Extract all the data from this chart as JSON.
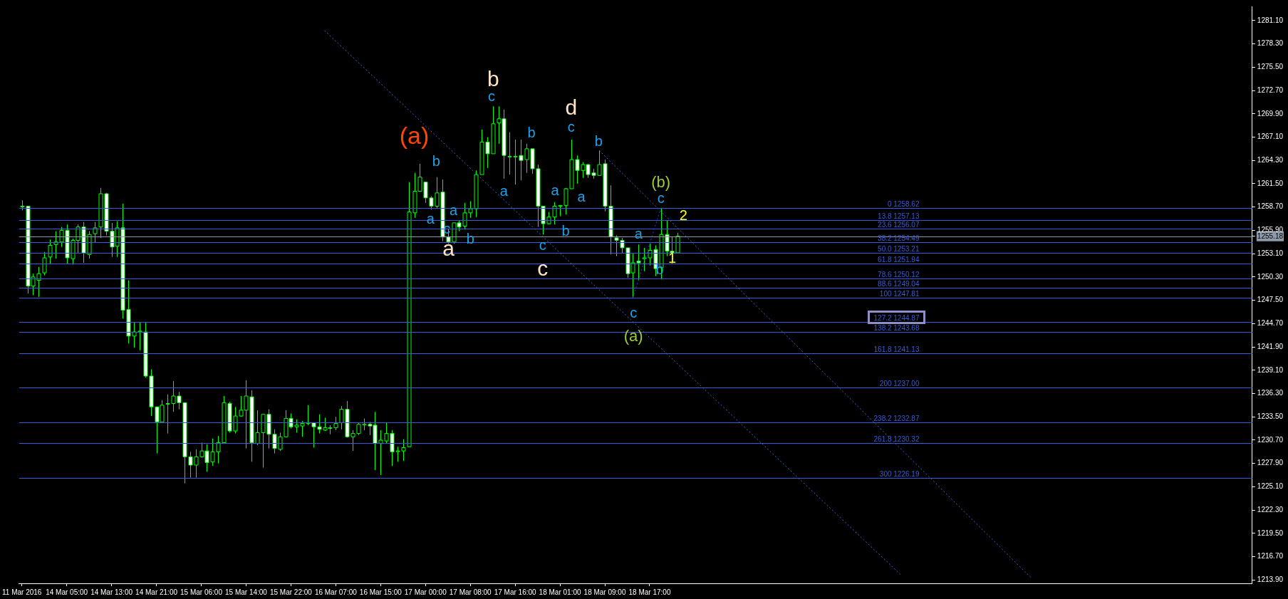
{
  "chart_data": {
    "type": "candlestick",
    "color": "#00ff00",
    "categories": [
      "11 Mar 2016",
      null,
      null,
      null,
      null,
      null,
      null,
      null,
      "14 Mar 05:00",
      null,
      null,
      null,
      null,
      null,
      null,
      null,
      "14 Mar 13:00",
      null,
      null,
      null,
      null,
      null,
      null,
      null,
      "14 Mar 21:00",
      null,
      null,
      null,
      null,
      null,
      null,
      null,
      "15 Mar 06:00",
      null,
      null,
      null,
      null,
      null,
      null,
      null,
      "15 Mar 14:00",
      null,
      null,
      null,
      null,
      null,
      null,
      null,
      "15 Mar 22:00",
      null,
      null,
      null,
      null,
      null,
      null,
      null,
      "16 Mar 07:00",
      null,
      null,
      null,
      null,
      null,
      null,
      null,
      "16 Mar 15:00",
      null,
      null,
      null,
      null,
      null,
      null,
      null,
      "17 Mar 00:00",
      null,
      null,
      null,
      null,
      null,
      null,
      null,
      "17 Mar 08:00",
      null,
      null,
      null,
      null,
      null,
      null,
      null,
      "17 Mar 16:00",
      null,
      null,
      null,
      null,
      null,
      null,
      null,
      "18 Mar 01:00",
      null,
      null,
      null,
      null,
      null,
      null,
      null,
      "18 Mar 09:00",
      null,
      null,
      null,
      null,
      null,
      null,
      null,
      "18 Mar 17:00",
      null,
      null,
      null,
      null,
      null,
      null,
      null,
      null,
      null,
      null,
      null,
      null,
      null,
      null,
      null,
      null,
      null,
      null,
      null,
      null,
      null,
      null,
      null,
      null,
      null,
      null,
      null,
      null,
      null,
      null,
      null,
      null,
      null,
      null,
      null,
      null,
      null,
      null,
      null,
      null,
      null,
      null,
      null,
      null,
      null,
      null,
      null,
      null,
      null,
      null,
      null,
      null,
      null,
      null,
      null,
      null,
      null,
      null,
      null,
      null,
      null,
      null,
      null,
      null,
      null,
      null,
      null,
      null,
      null,
      null,
      null,
      null,
      null,
      null,
      null,
      null,
      null,
      null,
      null,
      null,
      null,
      null,
      null,
      null,
      null,
      null,
      null,
      null,
      null,
      null,
      null,
      null,
      null,
      null,
      null,
      null,
      null,
      null,
      null,
      null,
      null,
      null,
      null,
      null,
      null,
      null,
      null
    ],
    "ohlc": [
      [
        1258.8,
        1259.5,
        1258.3,
        1258.8
      ],
      [
        1258.8,
        1258.8,
        1248.3,
        1249.2
      ],
      [
        1249.2,
        1250.7,
        1248.1,
        1250.3
      ],
      [
        1249.9,
        1251.5,
        1247.9,
        1250.7
      ],
      [
        1250.8,
        1253.3,
        1250.5,
        1252.6
      ],
      [
        1252.7,
        1254.8,
        1251.9,
        1254.1
      ],
      [
        1254.2,
        1255.8,
        1252.5,
        1254.5
      ],
      [
        1254.5,
        1256.3,
        1253.9,
        1255.9
      ],
      [
        1255.9,
        1256.6,
        1251.9,
        1252.6
      ],
      [
        1252.5,
        1254.9,
        1251.8,
        1254.7
      ],
      [
        1254.7,
        1256.6,
        1253.2,
        1256.3
      ],
      [
        1256.3,
        1256.9,
        1252.0,
        1253.2
      ],
      [
        1253.0,
        1255.8,
        1252.5,
        1255.4
      ],
      [
        1255.5,
        1256.9,
        1254.4,
        1256.2
      ],
      [
        1256.3,
        1261.0,
        1255.0,
        1260.3
      ],
      [
        1260.3,
        1260.4,
        1255.3,
        1255.8
      ],
      [
        1255.8,
        1256.8,
        1252.7,
        1253.9
      ],
      [
        1254.0,
        1257.0,
        1252.7,
        1256.2
      ],
      [
        1256.2,
        1259.1,
        1245.3,
        1246.3
      ],
      [
        1246.4,
        1249.9,
        1242.3,
        1243.2
      ],
      [
        1243.2,
        1244.9,
        1241.8,
        1243.7
      ],
      [
        1243.8,
        1244.9,
        1241.5,
        1243.8
      ],
      [
        1243.7,
        1244.8,
        1238.2,
        1238.4
      ],
      [
        1238.4,
        1239.2,
        1233.6,
        1234.7
      ],
      [
        1234.7,
        1234.7,
        1229.1,
        1232.9
      ],
      [
        1232.9,
        1235.5,
        1232.9,
        1234.9
      ],
      [
        1235.1,
        1236.2,
        1231.5,
        1235.1
      ],
      [
        1235.1,
        1237.8,
        1234.1,
        1236.0
      ],
      [
        1236.0,
        1236.5,
        1234.4,
        1235.2
      ],
      [
        1235.2,
        1235.2,
        1225.5,
        1228.7
      ],
      [
        1228.7,
        1229.3,
        1226.2,
        1227.7
      ],
      [
        1227.7,
        1229.6,
        1226.2,
        1228.7
      ],
      [
        1228.7,
        1230.4,
        1228.6,
        1229.4
      ],
      [
        1229.4,
        1230.2,
        1226.9,
        1228.0
      ],
      [
        1228.1,
        1230.9,
        1227.6,
        1229.3
      ],
      [
        1229.3,
        1231.2,
        1227.9,
        1230.4
      ],
      [
        1230.4,
        1236.0,
        1230.3,
        1235.2
      ],
      [
        1235.1,
        1235.3,
        1231.6,
        1231.8
      ],
      [
        1231.8,
        1234.7,
        1231.5,
        1233.6
      ],
      [
        1233.6,
        1236.0,
        1233.5,
        1234.3
      ],
      [
        1234.3,
        1237.9,
        1229.7,
        1236.0
      ],
      [
        1235.9,
        1236.7,
        1228.1,
        1230.4
      ],
      [
        1230.3,
        1234.3,
        1230.1,
        1231.6
      ],
      [
        1231.6,
        1233.8,
        1227.4,
        1233.8
      ],
      [
        1233.8,
        1234.4,
        1229.7,
        1231.4
      ],
      [
        1231.4,
        1232.0,
        1229.1,
        1229.7
      ],
      [
        1229.6,
        1231.6,
        1229.4,
        1231.1
      ],
      [
        1231.1,
        1234.3,
        1231.0,
        1233.3
      ],
      [
        1233.3,
        1233.9,
        1232.1,
        1232.3
      ],
      [
        1232.3,
        1233.2,
        1231.6,
        1232.5
      ],
      [
        1232.4,
        1233.0,
        1231.1,
        1232.7
      ],
      [
        1232.7,
        1234.9,
        1232.5,
        1232.8
      ],
      [
        1232.8,
        1232.8,
        1229.8,
        1232.3
      ],
      [
        1232.3,
        1233.8,
        1231.5,
        1232.0
      ],
      [
        1231.9,
        1233.4,
        1231.8,
        1232.2
      ],
      [
        1232.2,
        1232.5,
        1231.4,
        1232.2
      ],
      [
        1232.2,
        1233.5,
        1231.9,
        1232.7
      ],
      [
        1232.8,
        1234.8,
        1232.0,
        1234.4
      ],
      [
        1234.4,
        1235.4,
        1231.0,
        1231.1
      ],
      [
        1231.1,
        1231.9,
        1229.4,
        1231.5
      ],
      [
        1231.5,
        1232.8,
        1231.3,
        1232.6
      ],
      [
        1232.6,
        1233.3,
        1231.9,
        1232.6
      ],
      [
        1232.6,
        1232.9,
        1231.3,
        1232.4
      ],
      [
        1232.5,
        1234.1,
        1227.1,
        1230.3
      ],
      [
        1230.3,
        1231.9,
        1226.5,
        1230.7
      ],
      [
        1230.6,
        1232.8,
        1230.3,
        1231.5
      ],
      [
        1231.5,
        1231.9,
        1227.6,
        1229.3
      ],
      [
        1229.4,
        1229.9,
        1228.1,
        1229.4
      ],
      [
        1229.4,
        1230.8,
        1228.2,
        1229.8
      ],
      [
        1229.9,
        1261.7,
        1229.9,
        1258.1
      ],
      [
        1258.0,
        1262.8,
        1257.4,
        1260.6
      ],
      [
        1260.6,
        1263.9,
        1260.6,
        1262.3
      ],
      [
        1261.7,
        1261.7,
        1259.2,
        1259.8
      ],
      [
        1259.8,
        1260.0,
        1258.4,
        1258.8
      ],
      [
        1258.8,
        1262.3,
        1258.6,
        1260.4
      ],
      [
        1260.5,
        1262.0,
        1254.6,
        1255.1
      ],
      [
        1255.1,
        1256.1,
        1254.3,
        1254.5
      ],
      [
        1254.5,
        1256.8,
        1254.3,
        1256.8
      ],
      [
        1256.8,
        1257.1,
        1255.8,
        1256.3
      ],
      [
        1256.4,
        1259.2,
        1256.0,
        1258.0
      ],
      [
        1258.0,
        1259.4,
        1257.4,
        1258.5
      ],
      [
        1258.5,
        1263.1,
        1257.5,
        1262.6
      ],
      [
        1262.6,
        1268.0,
        1262.6,
        1266.5
      ],
      [
        1266.5,
        1267.1,
        1263.4,
        1265.1
      ],
      [
        1265.1,
        1270.8,
        1265.1,
        1268.7
      ],
      [
        1268.8,
        1270.8,
        1266.3,
        1269.3
      ],
      [
        1269.3,
        1270.4,
        1262.1,
        1264.9
      ],
      [
        1264.8,
        1267.7,
        1262.6,
        1264.8
      ],
      [
        1264.8,
        1266.8,
        1261.4,
        1264.8
      ],
      [
        1264.9,
        1266.8,
        1261.9,
        1264.3
      ],
      [
        1264.4,
        1266.3,
        1262.8,
        1265.7
      ],
      [
        1265.7,
        1265.7,
        1262.7,
        1263.3
      ],
      [
        1263.3,
        1263.8,
        1256.3,
        1258.8
      ],
      [
        1258.8,
        1258.8,
        1255.4,
        1256.7
      ],
      [
        1256.7,
        1258.1,
        1256.6,
        1257.5
      ],
      [
        1257.5,
        1259.3,
        1256.6,
        1258.8
      ],
      [
        1258.8,
        1258.9,
        1257.6,
        1258.9
      ],
      [
        1258.9,
        1261.0,
        1257.8,
        1260.9
      ],
      [
        1260.9,
        1266.8,
        1260.9,
        1264.4
      ],
      [
        1264.4,
        1264.9,
        1261.5,
        1263.1
      ],
      [
        1263.1,
        1264.1,
        1262.2,
        1263.8
      ],
      [
        1263.8,
        1263.9,
        1262.2,
        1262.6
      ],
      [
        1262.8,
        1263.3,
        1262.1,
        1262.5
      ],
      [
        1262.5,
        1265.5,
        1262.5,
        1263.8
      ],
      [
        1263.9,
        1264.4,
        1258.2,
        1258.8
      ],
      [
        1258.8,
        1261.3,
        1253.0,
        1255.1
      ],
      [
        1255.0,
        1255.3,
        1252.8,
        1254.7
      ],
      [
        1254.7,
        1255.0,
        1253.2,
        1253.8
      ],
      [
        1253.8,
        1253.8,
        1250.2,
        1250.7
      ],
      [
        1250.8,
        1253.1,
        1247.8,
        1252.0
      ],
      [
        1252.2,
        1254.2,
        1249.9,
        1252.0
      ],
      [
        1252.5,
        1253.8,
        1251.0,
        1252.6
      ],
      [
        1252.6,
        1254.3,
        1251.7,
        1253.5
      ],
      [
        1253.6,
        1254.1,
        1250.4,
        1251.3
      ],
      [
        1251.4,
        1258.6,
        1250.0,
        1255.4
      ],
      [
        1255.4,
        1257.1,
        1252.8,
        1253.4
      ],
      [
        1253.4,
        1255.1,
        1251.9,
        1253.2
      ],
      [
        1253.2,
        1255.6,
        1253.2,
        1255.2
      ],
      null,
      null,
      null,
      null,
      null,
      null,
      null,
      null,
      null,
      null,
      null,
      null,
      null,
      null,
      null,
      null,
      null,
      null,
      null,
      null,
      null,
      null,
      null,
      null,
      null,
      null,
      null,
      null,
      null,
      null,
      null,
      null,
      null,
      null,
      null,
      null,
      null,
      null,
      null,
      null,
      null,
      null,
      null,
      null,
      null,
      null,
      null,
      null,
      null,
      null,
      null,
      null,
      null,
      null,
      null,
      null,
      null,
      null,
      null,
      null,
      null,
      null,
      null,
      null,
      null,
      null,
      null,
      null,
      null,
      null,
      null,
      null,
      null,
      null,
      null,
      null,
      null,
      null,
      null,
      null,
      null,
      null,
      null,
      null,
      null,
      null,
      null,
      null,
      null,
      null,
      null,
      null,
      null,
      null,
      null,
      null,
      null,
      null,
      null,
      null,
      null,
      null
    ],
    "series": [
      {
        "type": "line",
        "color": "#4169e1",
        "line_style": "dotted",
        "values": [
          null,
          null,
          null,
          null,
          null,
          null,
          null,
          null,
          null,
          null,
          null,
          null,
          null,
          null,
          null,
          null,
          null,
          null,
          null,
          null,
          null,
          null,
          null,
          null,
          null,
          null,
          null,
          null,
          null,
          null,
          null,
          null,
          null,
          null,
          null,
          null,
          null,
          null,
          null,
          null,
          null,
          null,
          null,
          null,
          null,
          null,
          null,
          null,
          null,
          null,
          null,
          null,
          null,
          null,
          1279.9,
          null,
          null,
          null,
          null,
          null,
          null,
          null,
          null,
          null,
          null,
          null,
          null,
          null,
          null,
          null,
          null,
          null,
          null,
          null,
          null,
          null,
          null,
          null,
          null,
          null,
          null,
          null,
          null,
          null,
          null,
          null,
          null,
          null,
          null,
          null,
          null,
          null,
          null,
          null,
          null,
          null,
          null,
          null,
          null,
          null,
          null,
          null,
          null,
          null,
          null,
          null,
          null,
          null,
          null,
          null,
          null,
          null,
          null,
          null,
          null,
          null,
          null,
          null,
          null,
          null,
          null,
          null,
          null,
          null,
          null,
          null,
          null,
          null,
          null,
          null,
          null,
          null,
          null,
          null,
          null,
          null,
          null,
          null,
          null,
          null,
          null,
          null,
          null,
          null,
          null,
          null,
          null,
          null,
          null,
          null,
          null,
          null,
          null,
          null,
          null,
          null,
          null,
          1214.4,
          null,
          null,
          null,
          null,
          null,
          null,
          null,
          null,
          null,
          null,
          null,
          null,
          null,
          null,
          null,
          null,
          null,
          null,
          null,
          null,
          null,
          null,
          null,
          null,
          null,
          null,
          null,
          null,
          null,
          null,
          null,
          null,
          null,
          null,
          null,
          null,
          null,
          null,
          null,
          null,
          null,
          null,
          null,
          null,
          null,
          null,
          null,
          null,
          null,
          null,
          null,
          null,
          null,
          null,
          null,
          null,
          null,
          null,
          null,
          null,
          null,
          null
        ]
      },
      {
        "type": "line",
        "color": "#4169e1",
        "line_style": "dotted",
        "values": [
          null,
          null,
          null,
          null,
          null,
          null,
          null,
          null,
          null,
          null,
          null,
          null,
          null,
          null,
          null,
          null,
          null,
          null,
          null,
          null,
          null,
          null,
          null,
          null,
          null,
          null,
          null,
          null,
          null,
          null,
          null,
          null,
          null,
          null,
          null,
          null,
          null,
          null,
          null,
          null,
          null,
          null,
          null,
          null,
          null,
          null,
          null,
          null,
          null,
          null,
          null,
          null,
          null,
          null,
          null,
          null,
          null,
          null,
          null,
          null,
          null,
          null,
          null,
          null,
          null,
          null,
          null,
          null,
          null,
          null,
          null,
          null,
          null,
          null,
          null,
          null,
          null,
          null,
          null,
          null,
          null,
          null,
          null,
          null,
          null,
          null,
          null,
          null,
          null,
          null,
          null,
          null,
          null,
          null,
          null,
          null,
          null,
          null,
          null,
          null,
          null,
          null,
          null,
          1265.5,
          null,
          null,
          null,
          null,
          null,
          null,
          null,
          null,
          null,
          null,
          null,
          null,
          null,
          null,
          null,
          null,
          null,
          null,
          null,
          null,
          null,
          null,
          null,
          null,
          null,
          null,
          null,
          null,
          null,
          null,
          null,
          null,
          null,
          null,
          null,
          null,
          null,
          null,
          null,
          null,
          null,
          null,
          null,
          null,
          null,
          null,
          null,
          null,
          null,
          null,
          null,
          null,
          null,
          null,
          null,
          null,
          null,
          null,
          null,
          null,
          null,
          null,
          null,
          null,
          null,
          null,
          null,
          null,
          null,
          null,
          null,
          null,
          null,
          null,
          null,
          null,
          1214.2,
          null,
          null,
          null,
          null,
          null,
          null,
          null,
          null,
          null,
          null,
          null,
          null,
          null,
          null,
          null,
          null,
          null,
          null,
          null,
          null,
          null,
          null,
          null,
          null,
          null,
          null,
          null,
          null,
          null,
          null,
          null,
          null,
          null,
          null,
          null,
          null,
          null,
          null,
          null
        ]
      },
      {
        "type": "line",
        "color": "#2040ff",
        "line_style": "dotted",
        "values": [
          null,
          null,
          null,
          null,
          null,
          null,
          null,
          null,
          null,
          null,
          null,
          null,
          null,
          null,
          null,
          null,
          null,
          null,
          null,
          null,
          null,
          null,
          null,
          null,
          null,
          null,
          null,
          null,
          null,
          null,
          null,
          null,
          null,
          null,
          null,
          null,
          null,
          null,
          null,
          null,
          null,
          null,
          null,
          null,
          null,
          null,
          null,
          null,
          null,
          null,
          null,
          null,
          null,
          null,
          null,
          null,
          null,
          null,
          null,
          null,
          null,
          null,
          null,
          null,
          null,
          null,
          null,
          null,
          null,
          null,
          null,
          null,
          null,
          null,
          null,
          null,
          null,
          null,
          null,
          null,
          null,
          null,
          null,
          null,
          null,
          null,
          null,
          null,
          null,
          null,
          null,
          null,
          null,
          null,
          null,
          null,
          null,
          null,
          null,
          null,
          null,
          null,
          null,
          null,
          null,
          null,
          null,
          null,
          null,
          1247.8,
          null,
          null,
          null,
          null,
          1258.6,
          null,
          null,
          null,
          null,
          null,
          null,
          null,
          null,
          null,
          null,
          null,
          null,
          null,
          null,
          null,
          null,
          null,
          null,
          null,
          null,
          null,
          null,
          null,
          null,
          null,
          null,
          null,
          null,
          null,
          null,
          null,
          null,
          null,
          null,
          null,
          null,
          null,
          null,
          null,
          null,
          null,
          null,
          null,
          null,
          null,
          null,
          null,
          null,
          null,
          null,
          null,
          null,
          null,
          null,
          null,
          null,
          null,
          null,
          null,
          null,
          null,
          null,
          null,
          null,
          null,
          null,
          null,
          null,
          null,
          null,
          null,
          null,
          null,
          null,
          null,
          null,
          null,
          null,
          null,
          null,
          null,
          null,
          null,
          null,
          null,
          null,
          null,
          null,
          null,
          null,
          null,
          null,
          null,
          null,
          null,
          null,
          null,
          null,
          null,
          null,
          null,
          null,
          null,
          null,
          null
        ]
      }
    ],
    "ylim": [
      1213.5,
      1282.8
    ],
    "yticks": [
      {
        "value": 1213.9,
        "label": "1213.90"
      },
      {
        "value": 1216.7,
        "label": "1216.70"
      },
      {
        "value": 1219.5,
        "label": "1219.50"
      },
      {
        "value": 1222.3,
        "label": "1222.30"
      },
      {
        "value": 1225.1,
        "label": "1225.10"
      },
      {
        "value": 1227.9,
        "label": "1227.90"
      },
      {
        "value": 1230.7,
        "label": "1230.70"
      },
      {
        "value": 1233.5,
        "label": "1233.50"
      },
      {
        "value": 1236.3,
        "label": "1236.30"
      },
      {
        "value": 1239.1,
        "label": "1239.10"
      },
      {
        "value": 1241.9,
        "label": "1241.90"
      },
      {
        "value": 1244.7,
        "label": "1244.70"
      },
      {
        "value": 1247.5,
        "label": "1247.50"
      },
      {
        "value": 1250.3,
        "label": "1250.30"
      },
      {
        "value": 1253.1,
        "label": "1253.10"
      },
      {
        "value": 1255.18,
        "label": "1255.18"
      },
      {
        "value": 1255.9,
        "label": "1255.90"
      },
      {
        "value": 1258.7,
        "label": "1258.70"
      },
      {
        "value": 1261.5,
        "label": "1261.50"
      },
      {
        "value": 1264.3,
        "label": "1264.30"
      },
      {
        "value": 1267.1,
        "label": "1267.10"
      },
      {
        "value": 1269.9,
        "label": "1269.90"
      },
      {
        "value": 1272.7,
        "label": "1272.70"
      },
      {
        "value": 1275.5,
        "label": "1275.50"
      },
      {
        "value": 1278.3,
        "label": "1278.30"
      },
      {
        "value": 1281.1,
        "label": "1281.10"
      }
    ],
    "ref_lines": [
      {
        "axis": "y",
        "value": 1255.18,
        "color": "#8c9aaa"
      },
      {
        "axis": "y",
        "value": 1258.62,
        "label": "0 1258.62",
        "color": "#3a5bd9"
      },
      {
        "axis": "y",
        "value": 1257.13,
        "label": "13.8 1257.13",
        "color": "#3a5bd9"
      },
      {
        "axis": "y",
        "value": 1256.07,
        "label": "23.6 1256.07",
        "color": "#3a5bd9"
      },
      {
        "axis": "y",
        "value": 1254.49,
        "label": "38.2 1254.49",
        "color": "#3a5bd9"
      },
      {
        "axis": "y",
        "value": 1253.21,
        "label": "50.0 1253.21",
        "color": "#3a5bd9"
      },
      {
        "axis": "y",
        "value": 1251.94,
        "label": "61.8 1251.94",
        "color": "#3a5bd9"
      },
      {
        "axis": "y",
        "value": 1250.12,
        "label": "78.6 1250.12",
        "color": "#3a5bd9"
      },
      {
        "axis": "y",
        "value": 1249.04,
        "label": "88.6 1249.04",
        "color": "#3a5bd9"
      },
      {
        "axis": "y",
        "value": 1247.81,
        "label": "100 1247.81",
        "color": "#3a5bd9"
      },
      {
        "axis": "y",
        "value": 1244.87,
        "label": "127.2 1244.87",
        "color": "#3a5bd9"
      },
      {
        "axis": "y",
        "value": 1243.68,
        "label": "138.2 1243.68",
        "color": "#3a5bd9"
      },
      {
        "axis": "y",
        "value": 1241.13,
        "label": "161.8 1241.13",
        "color": "#3a5bd9"
      },
      {
        "axis": "y",
        "value": 1237.0,
        "label": "200 1237.00",
        "color": "#3a5bd9"
      },
      {
        "axis": "y",
        "value": 1232.87,
        "label": "238.2 1232.87",
        "color": "#3a5bd9"
      },
      {
        "axis": "y",
        "value": 1230.32,
        "label": "261.8 1230.32",
        "color": "#3a5bd9"
      },
      {
        "axis": "y",
        "value": 1226.19,
        "label": "300 1226.19",
        "color": "#3a5bd9"
      }
    ],
    "annotations": [
      "(a)",
      "b",
      "a",
      "a",
      "c",
      "b",
      "a",
      "b",
      "c",
      "a",
      "b",
      "c",
      "c",
      "a",
      "b",
      "d",
      "c",
      "a",
      "b",
      "(b)",
      "c",
      "2",
      "a",
      "1",
      "b",
      "c",
      "(a)"
    ]
  }
}
